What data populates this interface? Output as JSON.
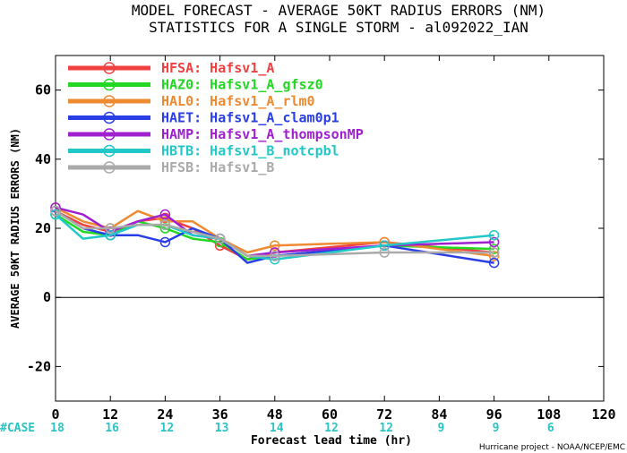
{
  "title_line1": "MODEL FORECAST - AVERAGE 50KT RADIUS ERRORS (NM)",
  "title_line2": "STATISTICS FOR A SINGLE STORM - al092022_IAN",
  "credit": "Hurricane project - NOAA/NCEP/EMC",
  "cases_label": "#CASE",
  "cases": [
    {
      "x": 0,
      "n": "18"
    },
    {
      "x": 12,
      "n": "16"
    },
    {
      "x": 24,
      "n": "12"
    },
    {
      "x": 36,
      "n": "13"
    },
    {
      "x": 48,
      "n": "14"
    },
    {
      "x": 60,
      "n": "12"
    },
    {
      "x": 72,
      "n": "12"
    },
    {
      "x": 84,
      "n": "9"
    },
    {
      "x": 96,
      "n": "9"
    },
    {
      "x": 108,
      "n": "6"
    }
  ],
  "chart_data": {
    "type": "line",
    "xlabel": "Forecast lead time (hr)",
    "ylabel": "AVERAGE 50KT RADIUS ERRORS (NM)",
    "xlim": [
      0,
      120
    ],
    "ylim": [
      -30,
      70
    ],
    "xticks": [
      "0",
      "12",
      "24",
      "36",
      "48",
      "60",
      "72",
      "84",
      "96",
      "108",
      "120"
    ],
    "yticks": [
      "-20",
      "0",
      "20",
      "40",
      "60"
    ],
    "zero_line": true,
    "legend_position": "top-left",
    "x": [
      0,
      6,
      12,
      18,
      24,
      30,
      36,
      42,
      48,
      72,
      96
    ],
    "series": [
      {
        "name": "HFSA: Hafsv1_A",
        "color": "#f04040",
        "values": [
          25,
          21,
          19,
          22,
          23,
          20,
          15,
          11,
          13,
          16,
          13
        ]
      },
      {
        "name": "HAZ0: Hafsv1_A_gfsz0",
        "color": "#22d822",
        "values": [
          24,
          19,
          18,
          22,
          20,
          17,
          16,
          11,
          12,
          15,
          14
        ]
      },
      {
        "name": "HAL0: Hafsv1_A_rlm0",
        "color": "#ee8a30",
        "values": [
          26,
          22,
          20,
          25,
          22,
          22,
          17,
          13,
          15,
          16,
          12
        ]
      },
      {
        "name": "HAET: Hafsv1_A_clam0p1",
        "color": "#2a3ee8",
        "values": [
          25,
          20,
          18,
          18,
          16,
          20,
          17,
          10,
          12,
          15,
          10
        ]
      },
      {
        "name": "HAMP: Hafsv1_A_thompsonMP",
        "color": "#a020d0",
        "values": [
          26,
          24,
          19,
          22,
          24,
          18,
          17,
          12,
          13,
          15,
          16
        ]
      },
      {
        "name": "HBTB: Hafsv1_B_notcpbl",
        "color": "#22c8c8",
        "values": [
          24,
          17,
          18,
          21,
          21,
          18,
          17,
          12,
          11,
          15,
          18
        ]
      },
      {
        "name": "HFSB: Hafsv1_B",
        "color": "#aaaaaa",
        "values": [
          25,
          20,
          20,
          21,
          21,
          19,
          17,
          12,
          12,
          13,
          13
        ]
      }
    ]
  }
}
